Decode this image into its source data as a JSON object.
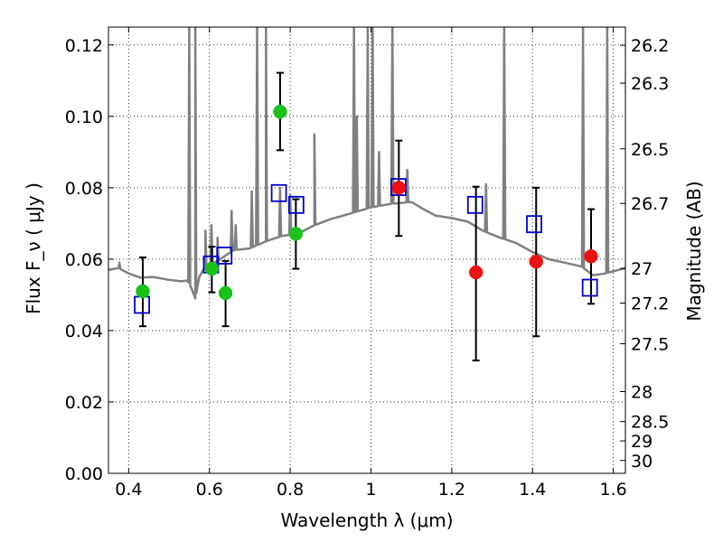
{
  "chart_data": {
    "type": "scatter",
    "xlabel": "Wavelength  λ (μm)",
    "ylabel": "Flux  F_ν  ( μJy )",
    "ylabel_right": "Magnitude (AB)",
    "xlim": [
      0.35,
      1.63
    ],
    "ylim": [
      0.0,
      0.125
    ],
    "x_ticks": [
      0.4,
      0.6,
      0.8,
      1.0,
      1.2,
      1.4,
      1.6
    ],
    "x_tick_labels": [
      "0.4",
      "0.6",
      "0.8",
      "1",
      "1.2",
      "1.4",
      "1.6"
    ],
    "y_ticks": [
      0.0,
      0.02,
      0.04,
      0.06,
      0.08,
      0.1,
      0.12
    ],
    "y_tick_labels": [
      "0.00",
      "0.02",
      "0.04",
      "0.06",
      "0.08",
      "0.10",
      "0.12"
    ],
    "right_ticks": [
      {
        "label": "26.2",
        "flux": 0.1199
      },
      {
        "label": "26.3",
        "flux": 0.1093
      },
      {
        "label": "26.5",
        "flux": 0.0909
      },
      {
        "label": "26.7",
        "flux": 0.0756
      },
      {
        "label": "27",
        "flux": 0.0574
      },
      {
        "label": "27.2",
        "flux": 0.0477
      },
      {
        "label": "27.5",
        "flux": 0.0363
      },
      {
        "label": "28",
        "flux": 0.0229
      },
      {
        "label": "28.5",
        "flux": 0.0145
      },
      {
        "label": "29",
        "flux": 0.0091
      },
      {
        "label": "30",
        "flux": 0.0036
      }
    ],
    "grid": true,
    "colors": {
      "model": "#808080",
      "green": "#19c219",
      "red": "#ee1111",
      "model_point": "#0000cc",
      "errorbar": "#000000"
    },
    "series": [
      {
        "marker": "circle-green",
        "points": [
          {
            "x": 0.435,
            "y": 0.051,
            "err": [
              0.0412,
              0.0605
            ]
          },
          {
            "x": 0.606,
            "y": 0.0573,
            "err": [
              0.0507,
              0.0635
            ]
          },
          {
            "x": 0.64,
            "y": 0.0505,
            "err": [
              0.0412,
              0.0595
            ]
          },
          {
            "x": 0.775,
            "y": 0.1013,
            "err": [
              0.0905,
              0.1122
            ]
          },
          {
            "x": 0.814,
            "y": 0.0671,
            "err": [
              0.0573,
              0.0768
            ]
          }
        ]
      },
      {
        "marker": "circle-red",
        "points": [
          {
            "x": 1.069,
            "y": 0.08,
            "err": [
              0.0665,
              0.0932
            ]
          },
          {
            "x": 1.26,
            "y": 0.0563,
            "err": [
              0.0316,
              0.0803
            ]
          },
          {
            "x": 1.409,
            "y": 0.0593,
            "err": [
              0.0384,
              0.08
            ]
          },
          {
            "x": 1.545,
            "y": 0.0608,
            "err": [
              0.0475,
              0.074
            ]
          }
        ]
      },
      {
        "marker": "square-open-blue",
        "points": [
          {
            "x": 0.433,
            "y": 0.0472
          },
          {
            "x": 0.604,
            "y": 0.0585
          },
          {
            "x": 0.637,
            "y": 0.061
          },
          {
            "x": 0.772,
            "y": 0.0785
          },
          {
            "x": 0.815,
            "y": 0.0752
          },
          {
            "x": 1.068,
            "y": 0.0802
          },
          {
            "x": 1.258,
            "y": 0.0752
          },
          {
            "x": 1.404,
            "y": 0.0698
          },
          {
            "x": 1.542,
            "y": 0.052
          }
        ]
      }
    ],
    "model_spectrum": {
      "baseline": [
        [
          0.35,
          0.057
        ],
        [
          0.375,
          0.0575
        ],
        [
          0.4,
          0.056
        ],
        [
          0.43,
          0.0548
        ],
        [
          0.46,
          0.055
        ],
        [
          0.5,
          0.0542
        ],
        [
          0.53,
          0.0538
        ],
        [
          0.545,
          0.054
        ],
        [
          0.555,
          0.052
        ],
        [
          0.565,
          0.049
        ],
        [
          0.575,
          0.055
        ],
        [
          0.59,
          0.058
        ],
        [
          0.62,
          0.0595
        ],
        [
          0.66,
          0.0625
        ],
        [
          0.7,
          0.063
        ],
        [
          0.74,
          0.065
        ],
        [
          0.78,
          0.0665
        ],
        [
          0.82,
          0.0672
        ],
        [
          0.86,
          0.0695
        ],
        [
          0.9,
          0.0712
        ],
        [
          0.95,
          0.0728
        ],
        [
          1.0,
          0.0745
        ],
        [
          1.05,
          0.0755
        ],
        [
          1.1,
          0.076
        ],
        [
          1.13,
          0.074
        ],
        [
          1.16,
          0.0722
        ],
        [
          1.2,
          0.0715
        ],
        [
          1.24,
          0.0705
        ],
        [
          1.28,
          0.0678
        ],
        [
          1.32,
          0.066
        ],
        [
          1.36,
          0.0645
        ],
        [
          1.4,
          0.062
        ],
        [
          1.44,
          0.06
        ],
        [
          1.48,
          0.059
        ],
        [
          1.52,
          0.058
        ],
        [
          1.55,
          0.0555
        ],
        [
          1.58,
          0.056
        ],
        [
          1.63,
          0.0575
        ]
      ],
      "lines": [
        {
          "x": 0.377,
          "y": 0.059
        },
        {
          "x": 0.55,
          "y": 0.125
        },
        {
          "x": 0.565,
          "y": 0.125
        },
        {
          "x": 0.59,
          "y": 0.068
        },
        {
          "x": 0.605,
          "y": 0.0695
        },
        {
          "x": 0.62,
          "y": 0.066
        },
        {
          "x": 0.655,
          "y": 0.0735
        },
        {
          "x": 0.665,
          "y": 0.0695
        },
        {
          "x": 0.705,
          "y": 0.079
        },
        {
          "x": 0.718,
          "y": 0.125
        },
        {
          "x": 0.74,
          "y": 0.125
        },
        {
          "x": 0.775,
          "y": 0.08
        },
        {
          "x": 0.8,
          "y": 0.078
        },
        {
          "x": 0.86,
          "y": 0.095
        },
        {
          "x": 0.958,
          "y": 0.125
        },
        {
          "x": 0.965,
          "y": 0.1
        },
        {
          "x": 0.992,
          "y": 0.125
        },
        {
          "x": 1.004,
          "y": 0.125
        },
        {
          "x": 1.02,
          "y": 0.09
        },
        {
          "x": 1.053,
          "y": 0.125
        },
        {
          "x": 1.09,
          "y": 0.085
        },
        {
          "x": 1.285,
          "y": 0.081
        },
        {
          "x": 1.33,
          "y": 0.125
        },
        {
          "x": 1.525,
          "y": 0.125
        },
        {
          "x": 1.585,
          "y": 0.125
        }
      ]
    }
  }
}
